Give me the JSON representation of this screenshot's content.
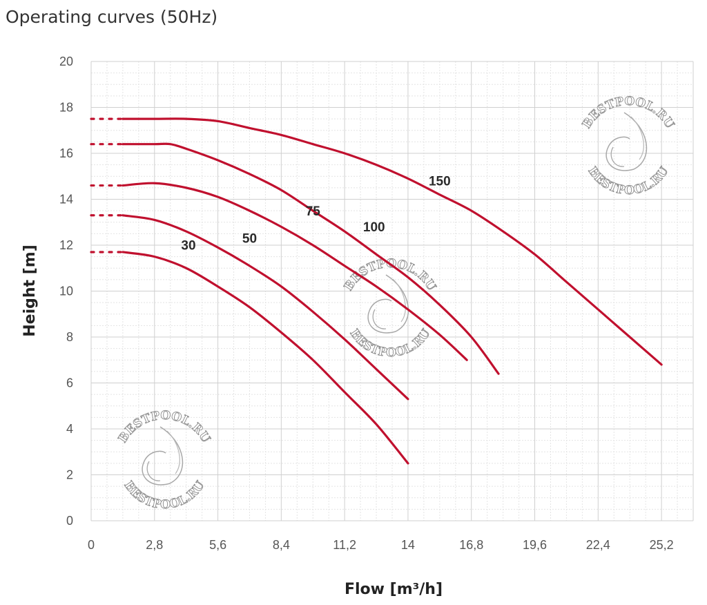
{
  "title": "Operating curves (50Hz)",
  "watermark": "BESTPOOL.RU",
  "colors": {
    "curve": "#c0102e",
    "grid_major": "#cfcfcf",
    "grid_minor": "#e4e4e4"
  },
  "chart_data": {
    "type": "line",
    "title": "Operating curves (50Hz)",
    "xlabel": "Flow [m³/h]",
    "ylabel": "Height [m]",
    "xlim": [
      0,
      26.6
    ],
    "ylim": [
      0,
      20
    ],
    "x_ticks": [
      "0",
      "2,8",
      "5,6",
      "8,4",
      "11,2",
      "14",
      "16,8",
      "19,6",
      "22,4",
      "25,2"
    ],
    "y_ticks": [
      "0",
      "2",
      "4",
      "6",
      "8",
      "10",
      "12",
      "14",
      "16",
      "18",
      "20"
    ],
    "grid": true,
    "legend": "none",
    "series": [
      {
        "name": "30",
        "start_head": 11.7,
        "x": [
          1.4,
          2.8,
          4.2,
          5.6,
          7.0,
          8.4,
          9.8,
          11.2,
          12.6,
          14.0
        ],
        "y": [
          11.7,
          11.5,
          11.0,
          10.2,
          9.3,
          8.2,
          7.0,
          5.6,
          4.2,
          2.5
        ]
      },
      {
        "name": "50",
        "start_head": 13.3,
        "x": [
          1.4,
          2.8,
          4.2,
          5.6,
          7.0,
          8.4,
          9.8,
          11.2,
          12.6,
          14.0
        ],
        "y": [
          13.3,
          13.1,
          12.6,
          11.9,
          11.1,
          10.2,
          9.1,
          7.9,
          6.6,
          5.3
        ]
      },
      {
        "name": "75",
        "start_head": 14.6,
        "x": [
          1.4,
          2.8,
          4.2,
          5.6,
          7.0,
          8.4,
          9.8,
          11.2,
          12.6,
          14.0,
          15.4,
          16.6
        ],
        "y": [
          14.6,
          14.7,
          14.5,
          14.1,
          13.5,
          12.8,
          12.0,
          11.1,
          10.2,
          9.2,
          8.1,
          7.0
        ]
      },
      {
        "name": "100",
        "start_head": 16.4,
        "x": [
          1.4,
          2.8,
          3.5,
          4.2,
          5.6,
          7.0,
          8.4,
          9.8,
          11.2,
          12.6,
          14.0,
          15.4,
          16.8,
          18.0
        ],
        "y": [
          16.4,
          16.4,
          16.4,
          16.2,
          15.7,
          15.1,
          14.4,
          13.5,
          12.6,
          11.6,
          10.6,
          9.4,
          8.0,
          6.4
        ]
      },
      {
        "name": "150",
        "start_head": 17.5,
        "x": [
          1.4,
          2.8,
          4.2,
          5.6,
          7.0,
          8.4,
          9.8,
          11.2,
          12.6,
          14.0,
          15.4,
          16.8,
          18.2,
          19.6,
          21.0,
          22.4,
          23.8,
          25.2
        ],
        "y": [
          17.5,
          17.5,
          17.5,
          17.4,
          17.1,
          16.8,
          16.4,
          16.0,
          15.5,
          14.9,
          14.2,
          13.5,
          12.6,
          11.6,
          10.4,
          9.2,
          8.0,
          6.8
        ]
      }
    ],
    "curve_labels": [
      {
        "text": "30",
        "x": 4.3,
        "y": 11.8
      },
      {
        "text": "50",
        "x": 7.0,
        "y": 12.1
      },
      {
        "text": "75",
        "x": 9.8,
        "y": 13.3
      },
      {
        "text": "100",
        "x": 12.5,
        "y": 12.6
      },
      {
        "text": "150",
        "x": 15.4,
        "y": 14.6
      }
    ]
  }
}
